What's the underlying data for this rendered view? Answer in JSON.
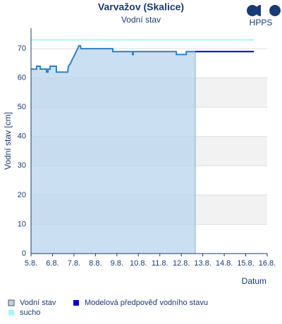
{
  "logo": "HPPS",
  "chart_data": {
    "type": "line",
    "title": "Varvažov (Skalice)",
    "subtitle": "Vodní stav",
    "y_label": "Vodní stav [cm]",
    "x_label": "Datum",
    "xlim": [
      0,
      11
    ],
    "ylim": [
      0,
      77
    ],
    "xticks": [
      {
        "value": 0,
        "label": "5.8."
      },
      {
        "value": 1,
        "label": "6.8."
      },
      {
        "value": 2,
        "label": "7.8."
      },
      {
        "value": 3,
        "label": "8.8."
      },
      {
        "value": 4,
        "label": "9.8."
      },
      {
        "value": 5,
        "label": "10.8."
      },
      {
        "value": 6,
        "label": "11.8."
      },
      {
        "value": 7,
        "label": "12.8."
      },
      {
        "value": 8,
        "label": "13.8."
      },
      {
        "value": 9,
        "label": "14.8."
      },
      {
        "value": 10,
        "label": "15.8."
      },
      {
        "value": 11,
        "label": "16.8."
      }
    ],
    "yticks": [
      0,
      10,
      20,
      30,
      40,
      50,
      60,
      70
    ],
    "grid": true,
    "series": [
      {
        "name": "Vodní stav",
        "color": "#2f7fc1",
        "fill": "#b9d4ee",
        "area": true,
        "x": [
          0,
          0.26,
          0.26,
          0.43,
          0.43,
          0.72,
          0.72,
          0.79,
          0.79,
          0.89,
          0.89,
          1.18,
          1.18,
          1.71,
          1.74,
          1.84,
          1.9,
          1.97,
          2.04,
          2.1,
          2.17,
          2.23,
          2.3,
          2.33,
          3.81,
          3.81,
          4.73,
          4.73,
          4.76,
          4.76,
          6.77,
          6.77,
          7.23,
          7.23,
          7.65
        ],
        "values": [
          63,
          63,
          64,
          64,
          63,
          63,
          62,
          62,
          63,
          63,
          64,
          64,
          62,
          62,
          64,
          65,
          66,
          67,
          68,
          69,
          70,
          71,
          71,
          70,
          70,
          69,
          69,
          68,
          68,
          69,
          69,
          68,
          68,
          69,
          69
        ]
      },
      {
        "name": "Modelová předpověď vodního stavu",
        "color": "#0000cc",
        "area": false,
        "x": [
          7.65,
          10.38
        ],
        "values": [
          69,
          69
        ]
      },
      {
        "name": "sucho",
        "color": "#aaf5f5",
        "area": false,
        "x": [
          0,
          10.38
        ],
        "values": [
          73,
          73
        ]
      }
    ]
  }
}
